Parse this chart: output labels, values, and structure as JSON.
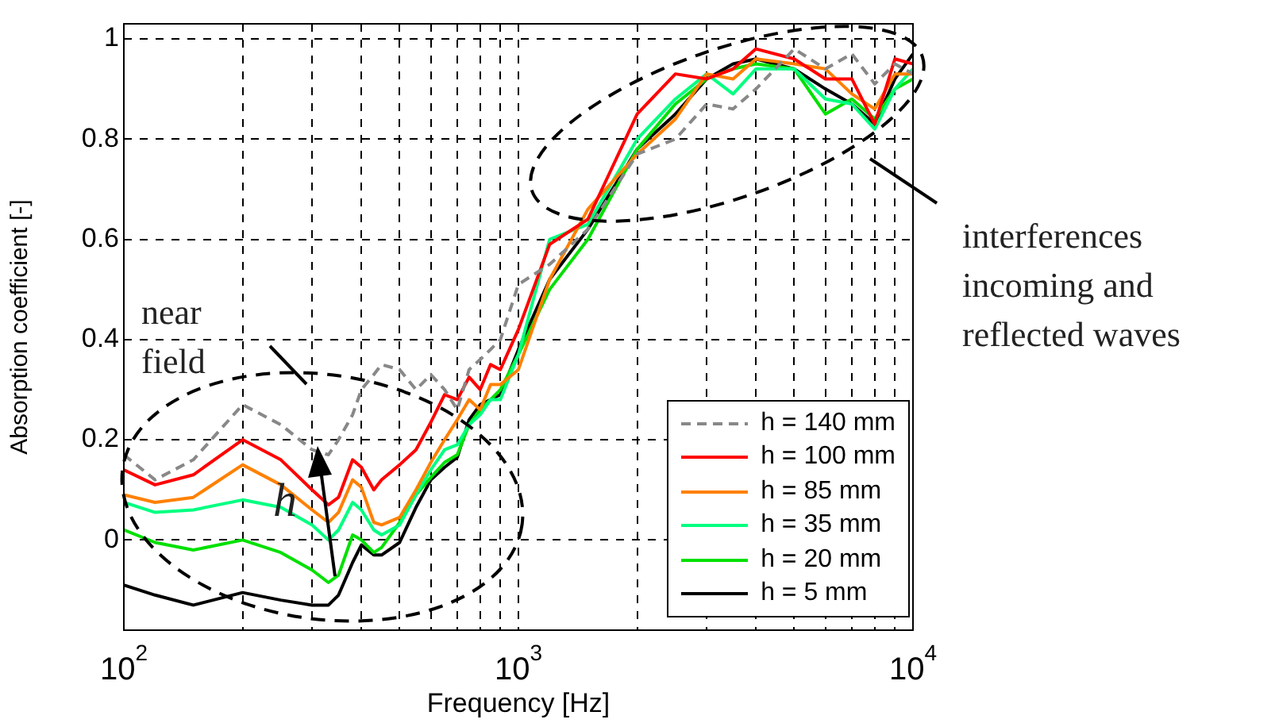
{
  "chart_data": {
    "type": "line",
    "xlabel": "Frequency [Hz]",
    "ylabel": "Absorption coefficient [-]",
    "log": "x",
    "grid": true,
    "legend": "bottom right",
    "marker": "none",
    "xlim": [
      100,
      10000
    ],
    "ylim": [
      -0.18,
      1.03
    ],
    "xticks": [
      {
        "value": 100,
        "label": "10$^{2}$"
      },
      {
        "value": 200,
        "label": null
      },
      {
        "value": 300,
        "label": null
      },
      {
        "value": 400,
        "label": null
      },
      {
        "value": 500,
        "label": null
      },
      {
        "value": 600,
        "label": null
      },
      {
        "value": 700,
        "label": null
      },
      {
        "value": 800,
        "label": null
      },
      {
        "value": 900,
        "label": null
      },
      {
        "value": 1000,
        "label": "10$^{3}$"
      },
      {
        "value": 2000,
        "label": null
      },
      {
        "value": 3000,
        "label": null
      },
      {
        "value": 4000,
        "label": null
      },
      {
        "value": 5000,
        "label": null
      },
      {
        "value": 6000,
        "label": null
      },
      {
        "value": 7000,
        "label": null
      },
      {
        "value": 8000,
        "label": null
      },
      {
        "value": 9000,
        "label": null
      },
      {
        "value": 10000,
        "label": "10$^{4}$"
      }
    ],
    "yticks": [
      0,
      0.2,
      0.4,
      0.6,
      0.8,
      1
    ],
    "x": [
      100,
      120,
      150,
      200,
      250,
      300,
      330,
      350,
      380,
      400,
      430,
      450,
      500,
      550,
      600,
      650,
      700,
      750,
      800,
      850,
      900,
      1000,
      1200,
      1500,
      2000,
      2500,
      3000,
      3500,
      4000,
      5000,
      6000,
      7000,
      8000,
      9000,
      10000
    ],
    "series": [
      {
        "name": "h = 140 mm",
        "color": "#888888",
        "line_style": "dashed",
        "values": [
          0.17,
          0.12,
          0.16,
          0.27,
          0.23,
          0.18,
          0.17,
          0.2,
          0.25,
          0.3,
          0.33,
          0.35,
          0.34,
          0.3,
          0.33,
          0.3,
          0.26,
          0.34,
          0.36,
          0.38,
          0.4,
          0.51,
          0.55,
          0.62,
          0.77,
          0.8,
          0.87,
          0.86,
          0.9,
          0.98,
          0.94,
          0.97,
          0.91,
          0.95,
          0.93
        ]
      },
      {
        "name": "h = 100 mm",
        "color": "#ff0000",
        "line_style": "solid",
        "values": [
          0.14,
          0.11,
          0.13,
          0.2,
          0.16,
          0.1,
          0.07,
          0.085,
          0.16,
          0.145,
          0.1,
          0.12,
          0.15,
          0.18,
          0.235,
          0.29,
          0.28,
          0.325,
          0.3,
          0.35,
          0.34,
          0.42,
          0.59,
          0.64,
          0.85,
          0.93,
          0.92,
          0.94,
          0.98,
          0.96,
          0.92,
          0.92,
          0.83,
          0.96,
          0.95
        ]
      },
      {
        "name": "h = 85 mm",
        "color": "#ff8000",
        "line_style": "solid",
        "values": [
          0.09,
          0.075,
          0.085,
          0.15,
          0.11,
          0.06,
          0.035,
          0.055,
          0.12,
          0.105,
          0.035,
          0.03,
          0.045,
          0.1,
          0.155,
          0.2,
          0.24,
          0.28,
          0.26,
          0.31,
          0.31,
          0.34,
          0.52,
          0.66,
          0.77,
          0.84,
          0.93,
          0.92,
          0.96,
          0.95,
          0.94,
          0.89,
          0.86,
          0.93,
          0.93
        ]
      },
      {
        "name": "h = 35 mm",
        "color": "#00ff80",
        "line_style": "solid",
        "values": [
          0.075,
          0.055,
          0.06,
          0.08,
          0.065,
          0.03,
          0,
          0.02,
          0.075,
          0.06,
          0.02,
          0.01,
          0.03,
          0.09,
          0.14,
          0.18,
          0.19,
          0.23,
          0.25,
          0.28,
          0.28,
          0.37,
          0.6,
          0.63,
          0.8,
          0.88,
          0.93,
          0.89,
          0.94,
          0.94,
          0.88,
          0.87,
          0.82,
          0.9,
          0.94
        ]
      },
      {
        "name": "h = 20 mm",
        "color": "#00e000",
        "line_style": "solid",
        "values": [
          0.02,
          -0.005,
          -0.02,
          0,
          -0.025,
          -0.06,
          -0.085,
          -0.07,
          0.01,
          0,
          -0.025,
          -0.015,
          0.035,
          0.09,
          0.125,
          0.155,
          0.17,
          0.23,
          0.26,
          0.28,
          0.3,
          0.37,
          0.5,
          0.6,
          0.78,
          0.87,
          0.92,
          0.94,
          0.95,
          0.94,
          0.85,
          0.88,
          0.84,
          0.9,
          0.92
        ]
      },
      {
        "name": "h = 5 mm",
        "color": "#000000",
        "line_style": "solid",
        "values": [
          -0.09,
          -0.11,
          -0.13,
          -0.105,
          -0.12,
          -0.13,
          -0.13,
          -0.11,
          -0.045,
          -0.01,
          -0.03,
          -0.03,
          -0.005,
          0.065,
          0.12,
          0.145,
          0.165,
          0.24,
          0.27,
          0.28,
          0.29,
          0.38,
          0.52,
          0.62,
          0.78,
          0.85,
          0.92,
          0.95,
          0.96,
          0.94,
          0.9,
          0.87,
          0.83,
          0.92,
          0.97
        ]
      }
    ],
    "annotations": [
      "near field",
      "interferences incoming and reflected waves",
      "h"
    ]
  }
}
